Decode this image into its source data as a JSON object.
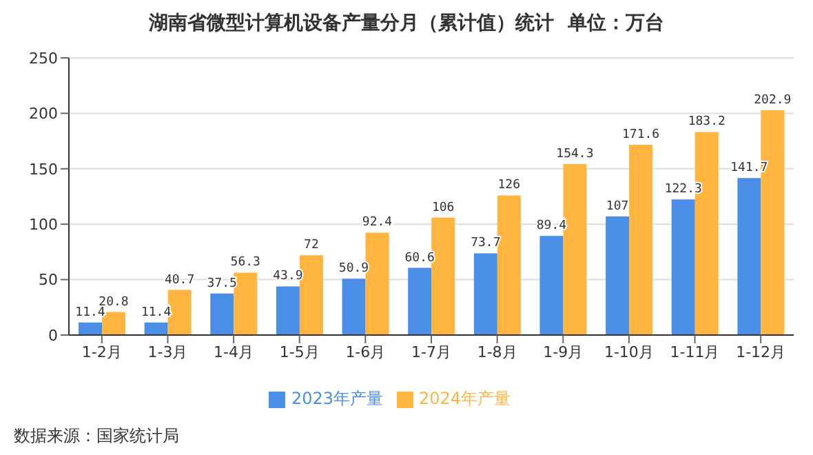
{
  "chart_data": {
    "type": "bar",
    "title": "湖南省微型计算机设备产量分月（累计值）统计  单位：万台",
    "categories": [
      "1-2月",
      "1-3月",
      "1-4月",
      "1-5月",
      "1-6月",
      "1-7月",
      "1-8月",
      "1-9月",
      "1-10月",
      "1-11月",
      "1-12月"
    ],
    "series": [
      {
        "name": "2023年产量",
        "color": "#4a8ee8",
        "values": [
          11.4,
          11.4,
          37.5,
          43.9,
          50.9,
          60.6,
          73.7,
          89.4,
          107,
          122.3,
          141.7
        ]
      },
      {
        "name": "2024年产量",
        "color": "#ffb540",
        "values": [
          20.8,
          40.7,
          56.3,
          72,
          92.4,
          106,
          126,
          154.3,
          171.6,
          183.2,
          202.9
        ]
      }
    ],
    "ylim": [
      0,
      250
    ],
    "yticks": [
      0,
      50,
      100,
      150,
      200,
      250
    ],
    "grid": "y",
    "legend": "bottom",
    "data_labels": true,
    "annotations": [
      "数据来源：国家统计局"
    ]
  }
}
